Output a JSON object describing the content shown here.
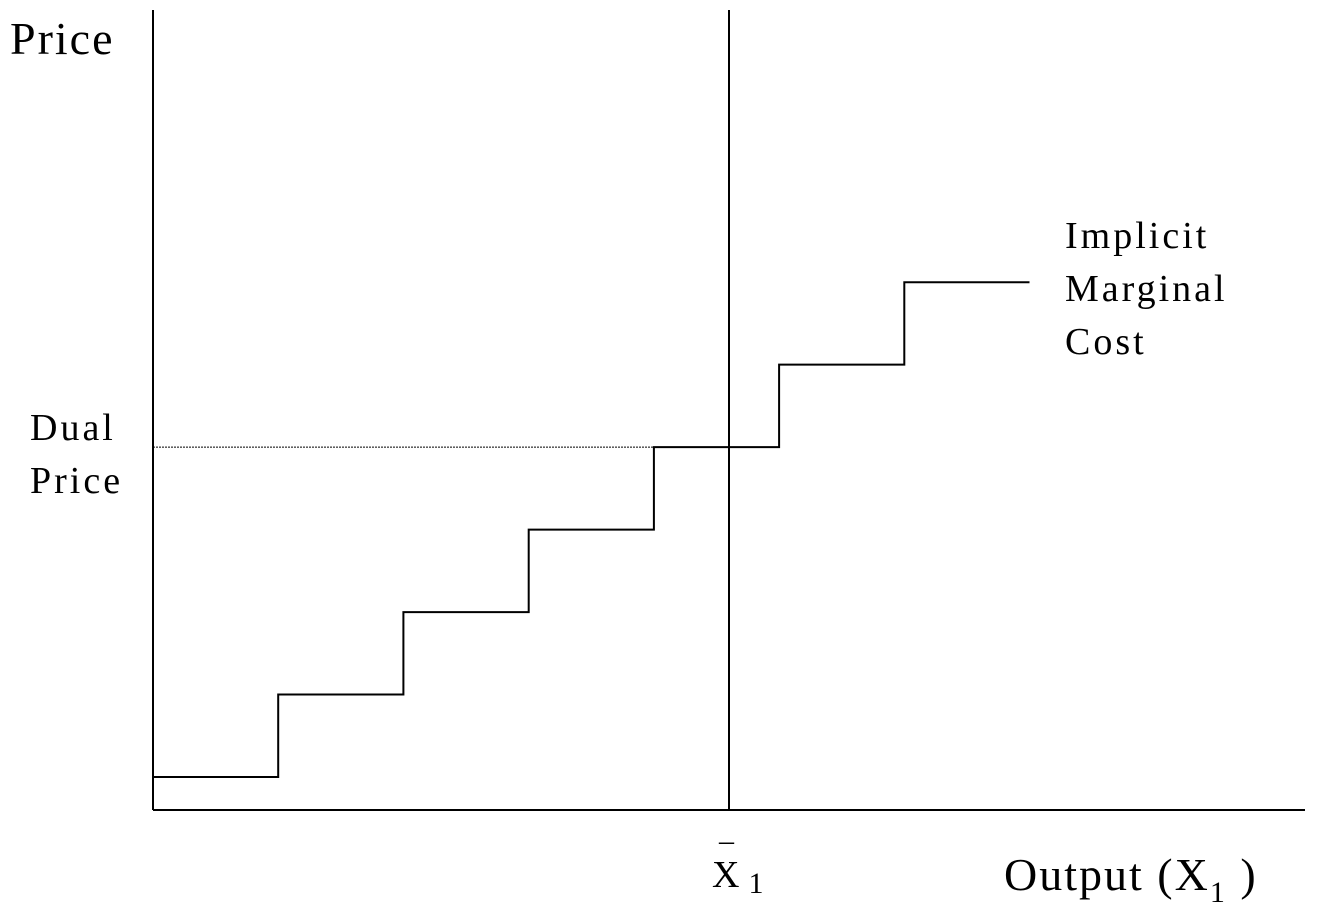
{
  "chart_data": {
    "type": "line",
    "title": "",
    "ylabel": "Price",
    "xlabel": {
      "main": "Output (X",
      "subscript": "1",
      "close": " )"
    },
    "x_marker": {
      "symbol": "X",
      "bar": "–",
      "subscript": "1",
      "x": 4.6
    },
    "dual_price": {
      "lines": [
        "Dual",
        "Price"
      ],
      "y": 4
    },
    "series": [
      {
        "name": "Implicit Marginal Cost",
        "label_lines": [
          "Implicit",
          "Marginal",
          "Cost"
        ],
        "steps": [
          {
            "x0": 0,
            "x1": 1,
            "y": 0
          },
          {
            "x0": 1,
            "x1": 2,
            "y": 1
          },
          {
            "x0": 2,
            "x1": 3,
            "y": 2
          },
          {
            "x0": 3,
            "x1": 4,
            "y": 3
          },
          {
            "x0": 4,
            "x1": 5,
            "y": 4
          },
          {
            "x0": 5,
            "x1": 6,
            "y": 5
          },
          {
            "x0": 6,
            "x1": 7,
            "y": 6
          }
        ]
      }
    ],
    "xlim": [
      0,
      9.2
    ],
    "ylim": [
      -0.4,
      9.3
    ],
    "grid": false,
    "legend": "none"
  },
  "colors": {
    "line": "#000000",
    "background": "#ffffff"
  }
}
